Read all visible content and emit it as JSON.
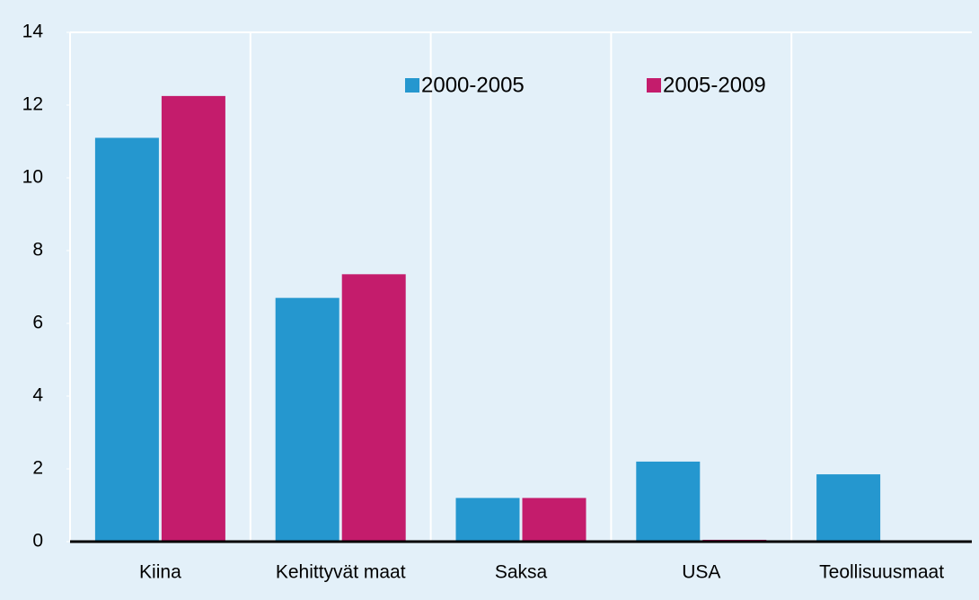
{
  "chart_data": {
    "type": "bar",
    "categories": [
      "Kiina",
      "Kehittyvät maat",
      "Saksa",
      "USA",
      "Teollisuusmaat"
    ],
    "series": [
      {
        "name": "2000-2005",
        "color": "#2597cf",
        "values": [
          11.1,
          6.7,
          1.2,
          2.2,
          1.85
        ]
      },
      {
        "name": "2005-2009",
        "color": "#c41c6c",
        "values": [
          12.25,
          7.35,
          1.2,
          0.05,
          0
        ]
      }
    ],
    "ylim": [
      0,
      14
    ],
    "yticks": [
      0,
      2,
      4,
      6,
      8,
      10,
      12,
      14
    ],
    "legend": "top"
  }
}
